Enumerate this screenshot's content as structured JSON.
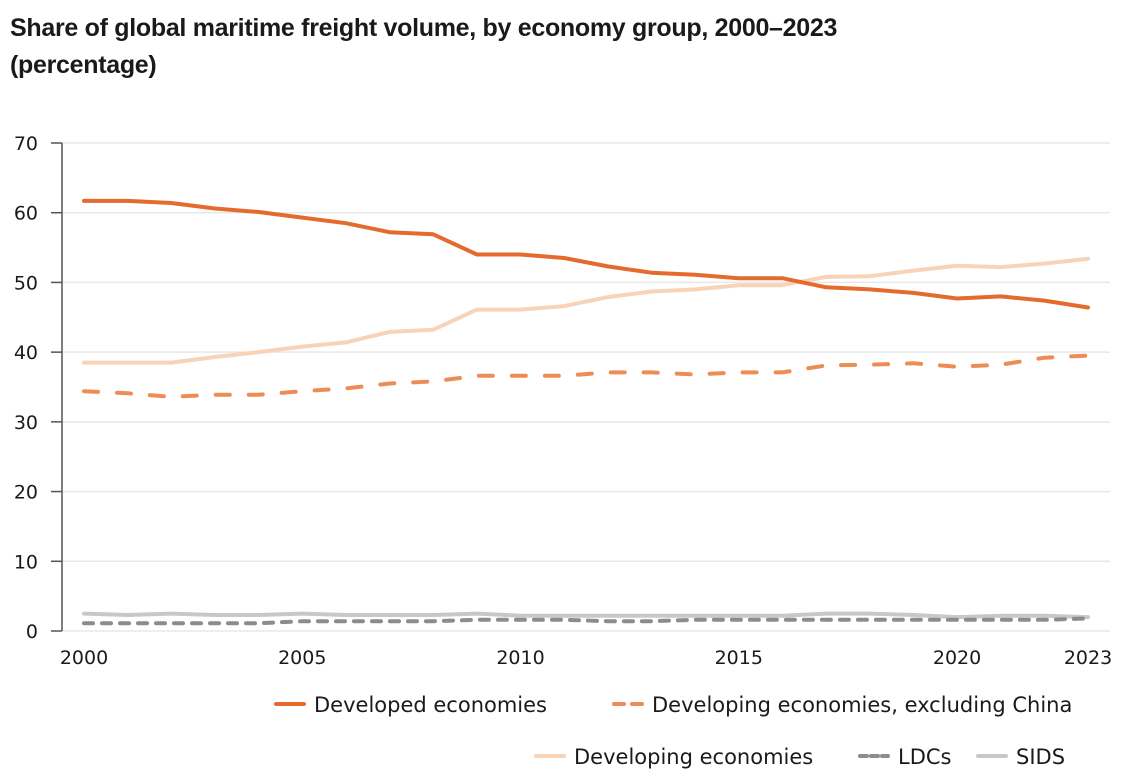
{
  "chart_data": {
    "type": "line",
    "title": "Share of global  maritime freight volume, by economy group, 2000–2023",
    "subtitle": "(percentage)",
    "xlabel": "",
    "ylabel": "",
    "x": [
      2000,
      2001,
      2002,
      2003,
      2004,
      2005,
      2006,
      2007,
      2008,
      2009,
      2010,
      2011,
      2012,
      2013,
      2014,
      2015,
      2016,
      2017,
      2018,
      2019,
      2020,
      2021,
      2022,
      2023
    ],
    "xlim": [
      2000,
      2023
    ],
    "x_ticks": [
      2000,
      2005,
      2010,
      2015,
      2020,
      2023
    ],
    "x_tick_labels": [
      "2000",
      "2005",
      "2010",
      "2015",
      "2020",
      "2023"
    ],
    "ylim": [
      0,
      70
    ],
    "y_ticks": [
      0,
      10,
      20,
      30,
      40,
      50,
      60,
      70
    ],
    "y_tick_labels": [
      "0",
      "10",
      "20",
      "30",
      "40",
      "50",
      "60",
      "70"
    ],
    "grid": true,
    "legend_position": "bottom-right",
    "series": [
      {
        "name": "Developed economies",
        "color": "#e46a2e",
        "style": "solid",
        "values": [
          61.7,
          61.7,
          61.4,
          60.6,
          60.1,
          59.3,
          58.5,
          57.2,
          56.9,
          54.0,
          54.0,
          53.5,
          52.3,
          51.4,
          51.1,
          50.6,
          50.6,
          49.3,
          49.0,
          48.5,
          47.7,
          48.0,
          47.4,
          46.4
        ]
      },
      {
        "name": "Developing economies, excluding China",
        "color": "#ed8c55",
        "style": "dashed",
        "values": [
          34.4,
          34.1,
          33.6,
          33.9,
          33.9,
          34.4,
          34.8,
          35.5,
          35.8,
          36.6,
          36.6,
          36.6,
          37.1,
          37.1,
          36.8,
          37.1,
          37.1,
          38.1,
          38.2,
          38.4,
          37.9,
          38.2,
          39.2,
          39.5
        ]
      },
      {
        "name": "Developing economies",
        "color": "#f8d3b8",
        "style": "solid",
        "values": [
          38.5,
          38.5,
          38.5,
          39.3,
          40.0,
          40.8,
          41.4,
          42.9,
          43.2,
          46.1,
          46.1,
          46.6,
          47.9,
          48.7,
          49.0,
          49.6,
          49.6,
          50.8,
          50.9,
          51.7,
          52.4,
          52.2,
          52.7,
          53.4
        ]
      },
      {
        "name": "LDCs",
        "color": "#8c8c8c",
        "style": "dashed",
        "values": [
          1.1,
          1.1,
          1.1,
          1.1,
          1.1,
          1.4,
          1.4,
          1.4,
          1.4,
          1.6,
          1.6,
          1.6,
          1.4,
          1.4,
          1.6,
          1.6,
          1.6,
          1.6,
          1.6,
          1.6,
          1.6,
          1.6,
          1.6,
          1.8
        ]
      },
      {
        "name": "SIDS",
        "color": "#c8c8c8",
        "style": "solid",
        "values": [
          2.5,
          2.3,
          2.5,
          2.3,
          2.3,
          2.5,
          2.3,
          2.3,
          2.3,
          2.5,
          2.2,
          2.2,
          2.2,
          2.2,
          2.2,
          2.2,
          2.2,
          2.5,
          2.5,
          2.3,
          2.0,
          2.2,
          2.2,
          2.0
        ]
      }
    ]
  }
}
